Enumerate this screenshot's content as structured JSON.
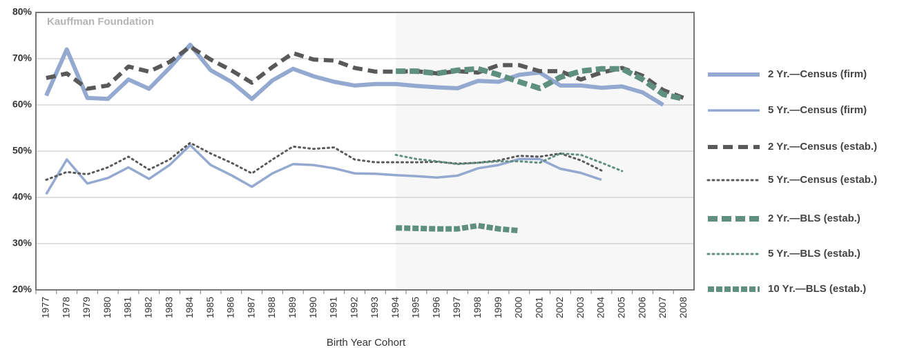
{
  "chart_data": {
    "type": "line",
    "annotation": "Kauffman Foundation",
    "x_label": "Birth Year Cohort",
    "categories": [
      "1977",
      "1978",
      "1979",
      "1980",
      "1981",
      "1982",
      "1983",
      "1984",
      "1985",
      "1986",
      "1987",
      "1988",
      "1989",
      "1990",
      "1991",
      "1992",
      "1993",
      "1994",
      "1995",
      "1996",
      "1997",
      "1998",
      "1999",
      "2000",
      "2001",
      "2002",
      "2003",
      "2004",
      "2005",
      "2006",
      "2007",
      "2008"
    ],
    "ylim": [
      20,
      80
    ],
    "yticks": [
      {
        "value": 20,
        "label": "20%"
      },
      {
        "value": 30,
        "label": "30%"
      },
      {
        "value": 40,
        "label": "40%"
      },
      {
        "value": 50,
        "label": "50%"
      },
      {
        "value": 60,
        "label": "60%"
      },
      {
        "value": 70,
        "label": "70%"
      },
      {
        "value": 80,
        "label": "80%"
      }
    ],
    "grid": true,
    "legend": "right",
    "series": [
      {
        "name": "2 Yr.—Census (firm)",
        "color": "#94a9cf",
        "values": [
          62,
          72,
          61.5,
          61.3,
          65.5,
          63.5,
          68,
          73,
          67.5,
          65,
          61.3,
          65.3,
          67.8,
          66.2,
          65,
          64.2,
          64.5,
          64.5,
          64.1,
          63.8,
          63.6,
          65.2,
          65,
          66.5,
          67,
          64.2,
          64.2,
          63.7,
          64,
          62.7,
          60,
          null
        ]
      },
      {
        "name": "5 Yr.—Census (firm)",
        "color": "#94a9cf",
        "values": [
          40.7,
          48.2,
          43,
          44.2,
          46.5,
          44,
          47,
          51.3,
          47,
          44.8,
          42.3,
          45.2,
          47.2,
          47,
          46.3,
          45.2,
          45.1,
          44.8,
          44.6,
          44.3,
          44.7,
          46.3,
          47,
          48.3,
          48.3,
          46.2,
          45.3,
          43.8,
          null,
          null,
          null,
          null
        ]
      },
      {
        "name": "2 Yr.—Census (estab.)",
        "color": "#595959",
        "values": [
          65.8,
          66.8,
          63.5,
          64.2,
          68.3,
          67.2,
          69.3,
          72.6,
          69.8,
          67.5,
          64.8,
          68.2,
          71.2,
          69.8,
          69.6,
          68,
          67.2,
          67.2,
          67.3,
          66.8,
          67.3,
          67,
          68.6,
          68.6,
          67.3,
          67.3,
          65.5,
          67,
          68,
          66.3,
          63.2,
          61.5
        ]
      },
      {
        "name": "5 Yr.—Census (estab.)",
        "color": "#595959",
        "values": [
          43.8,
          45.5,
          45,
          46.5,
          48.8,
          46,
          48.2,
          51.8,
          49.5,
          47.5,
          45.2,
          48.2,
          51,
          50.5,
          50.8,
          48.2,
          47.6,
          47.6,
          47.6,
          47.7,
          47.3,
          47.5,
          48,
          49,
          48.8,
          49.5,
          48,
          45.8,
          null,
          null,
          null,
          null
        ]
      },
      {
        "name": "2 Yr.—BLS (estab.)",
        "color": "#5f8f7e",
        "values": [
          null,
          null,
          null,
          null,
          null,
          null,
          null,
          null,
          null,
          null,
          null,
          null,
          null,
          null,
          null,
          null,
          null,
          67.3,
          67.3,
          66.8,
          67.5,
          67.8,
          66.5,
          65,
          63.6,
          66,
          67.3,
          67.8,
          67.8,
          65.5,
          62.3,
          61.3
        ]
      },
      {
        "name": "5 Yr.—BLS (estab.)",
        "color": "#5f8f7e",
        "values": [
          null,
          null,
          null,
          null,
          null,
          null,
          null,
          null,
          null,
          null,
          null,
          null,
          null,
          null,
          null,
          null,
          null,
          49.2,
          48.3,
          47.8,
          47.2,
          47.5,
          47.8,
          47.8,
          47.5,
          49.5,
          49.2,
          47.5,
          45.7,
          null,
          null,
          null
        ]
      },
      {
        "name": "10 Yr.—BLS (estab.)",
        "color": "#5f8f7e",
        "values": [
          null,
          null,
          null,
          null,
          null,
          null,
          null,
          null,
          null,
          null,
          null,
          null,
          null,
          null,
          null,
          null,
          null,
          33.4,
          33.3,
          33.2,
          33.2,
          33.9,
          33.2,
          32.8,
          null,
          null,
          null,
          null,
          null,
          null,
          null,
          null
        ]
      }
    ]
  }
}
